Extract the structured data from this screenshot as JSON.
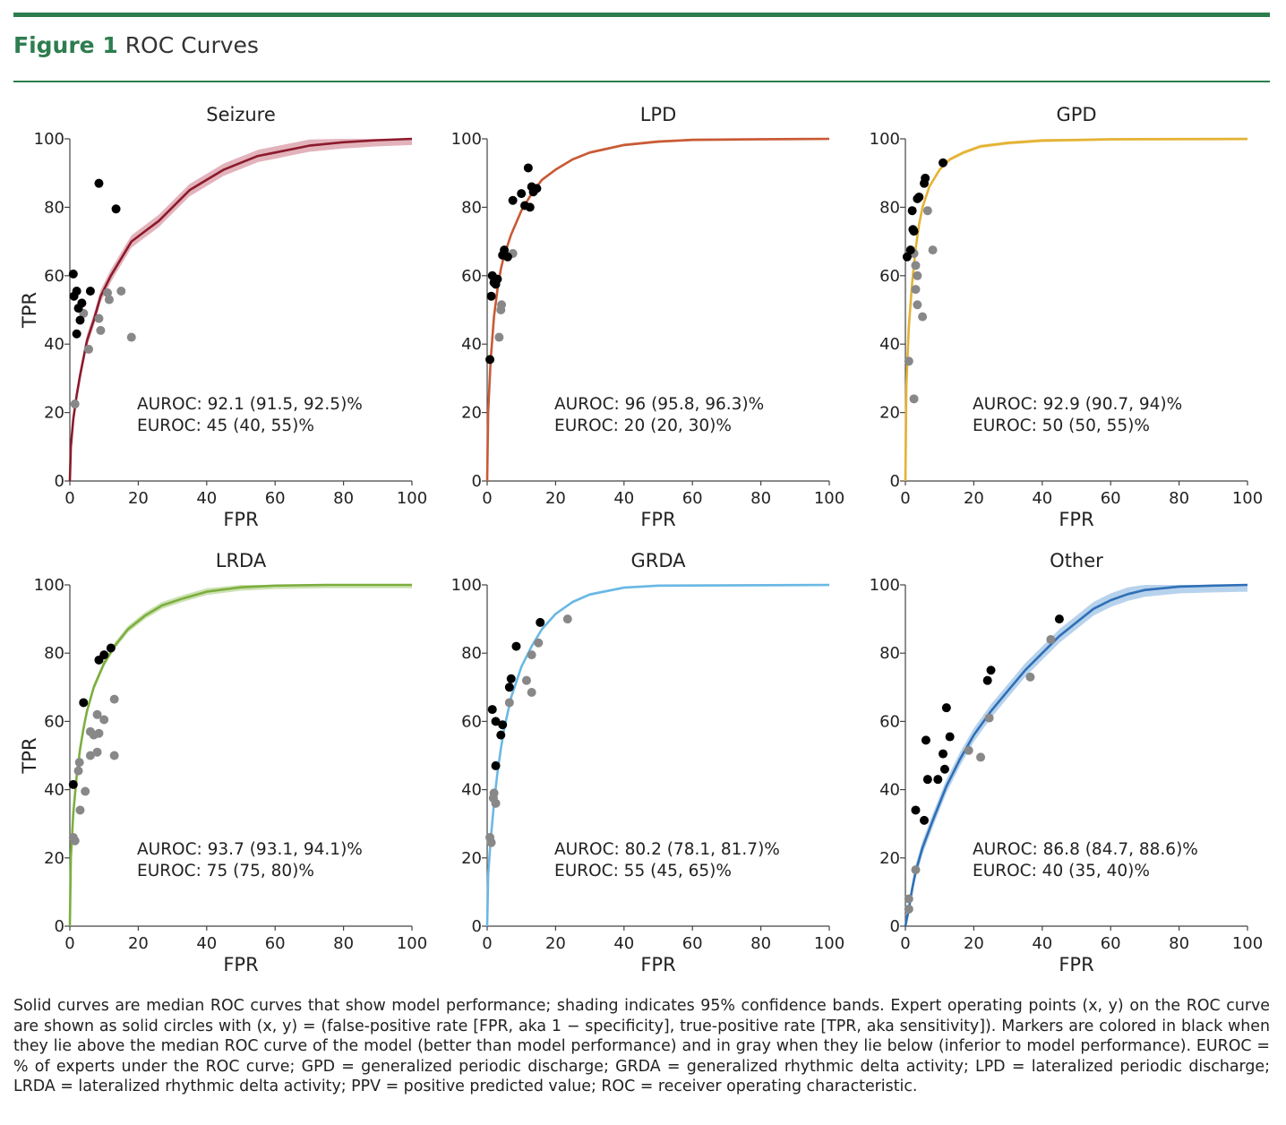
{
  "figure": {
    "label": "Figure 1",
    "name": "ROC Curves"
  },
  "colors": {
    "accent": "#2e7d4f",
    "black_marker": "#000000",
    "gray_marker": "#888888"
  },
  "axis_labels": {
    "x": "FPR",
    "y": "TPR"
  },
  "caption": "Solid curves are median ROC curves that show model performance; shading indicates 95% confidence bands. Expert operating points (x, y) on the ROC curve are shown as solid circles with (x, y) = (false-positive rate [FPR, aka 1 − specificity], true-positive rate [TPR, aka sensitivity]). Markers are colored in black when they lie above the median ROC curve of the model (better than model performance) and in gray when they lie below (inferior to model performance). EUROC = % of experts under the ROC curve; GPD = generalized periodic discharge; GRDA = generalized rhythmic delta activity; LPD = lateralized periodic discharge; LRDA = lateralized rhythmic delta activity; PPV = positive predicted value; ROC = receiver operating characteristic.",
  "chart_data": [
    {
      "type": "line",
      "title": "Seizure",
      "xlabel": "FPR",
      "ylabel": "TPR",
      "xlim": [
        0,
        100
      ],
      "ylim": [
        0,
        100
      ],
      "xticks": [
        "0",
        "20",
        "40",
        "60",
        "80",
        "100"
      ],
      "yticks": [
        "0",
        "20",
        "40",
        "60",
        "80",
        "100"
      ],
      "color": "#8b1a2b",
      "band_color": "#d99aa6",
      "curve": [
        [
          0,
          0
        ],
        [
          0.3,
          10
        ],
        [
          1,
          18
        ],
        [
          2,
          25
        ],
        [
          3,
          31
        ],
        [
          4,
          36
        ],
        [
          5,
          41
        ],
        [
          7,
          47
        ],
        [
          9,
          54
        ],
        [
          12,
          60
        ],
        [
          15,
          65
        ],
        [
          18,
          70
        ],
        [
          22,
          73
        ],
        [
          26,
          76
        ],
        [
          30,
          80
        ],
        [
          35,
          85
        ],
        [
          40,
          88
        ],
        [
          45,
          91
        ],
        [
          50,
          93
        ],
        [
          55,
          95
        ],
        [
          60,
          96
        ],
        [
          65,
          97
        ],
        [
          70,
          98
        ],
        [
          80,
          99
        ],
        [
          90,
          99.6
        ],
        [
          100,
          100
        ]
      ],
      "band_width": 1.8,
      "auroc_text": "AUROC: 92.1 (91.5, 92.5)%",
      "euroc_text": "EUROC: 45 (40, 55)%",
      "black_points": [
        [
          1,
          60.5
        ],
        [
          1.2,
          54
        ],
        [
          2,
          55.5
        ],
        [
          2,
          43
        ],
        [
          2.5,
          50.5
        ],
        [
          3,
          47
        ],
        [
          3.5,
          52
        ],
        [
          6,
          55.5
        ],
        [
          8.5,
          87
        ],
        [
          13.5,
          79.5
        ]
      ],
      "gray_points": [
        [
          1.5,
          22.5
        ],
        [
          4,
          49
        ],
        [
          5.5,
          38.5
        ],
        [
          8.5,
          47.5
        ],
        [
          9,
          44
        ],
        [
          11,
          55
        ],
        [
          11.5,
          53
        ],
        [
          15,
          55.5
        ],
        [
          18,
          42
        ]
      ]
    },
    {
      "type": "line",
      "title": "LPD",
      "xlabel": "FPR",
      "ylabel": "TPR",
      "xlim": [
        0,
        100
      ],
      "ylim": [
        0,
        100
      ],
      "xticks": [
        "0",
        "20",
        "40",
        "60",
        "80",
        "100"
      ],
      "yticks": [
        "0",
        "20",
        "40",
        "60",
        "80",
        "100"
      ],
      "color": "#c85a35",
      "band_color": "#e7a78c",
      "curve": [
        [
          0,
          0
        ],
        [
          0.3,
          20
        ],
        [
          1,
          35
        ],
        [
          2,
          48
        ],
        [
          3,
          56
        ],
        [
          4,
          62
        ],
        [
          5,
          66
        ],
        [
          7,
          72
        ],
        [
          10,
          79
        ],
        [
          13,
          84
        ],
        [
          16,
          88
        ],
        [
          20,
          91
        ],
        [
          25,
          94
        ],
        [
          30,
          96
        ],
        [
          40,
          98.2
        ],
        [
          50,
          99.2
        ],
        [
          60,
          99.7
        ],
        [
          80,
          99.9
        ],
        [
          100,
          100
        ]
      ],
      "band_width": 0.4,
      "auroc_text": "AUROC: 96 (95.8, 96.3)%",
      "euroc_text": "EUROC: 20 (20, 30)%",
      "black_points": [
        [
          0.8,
          35.5
        ],
        [
          1.2,
          54
        ],
        [
          1.5,
          60
        ],
        [
          2,
          58
        ],
        [
          3,
          59
        ],
        [
          2.5,
          57.5
        ],
        [
          4.5,
          66
        ],
        [
          5,
          67.5
        ],
        [
          6,
          65.5
        ],
        [
          7.5,
          82
        ],
        [
          10,
          84
        ],
        [
          11,
          80.5
        ],
        [
          12,
          91.5
        ],
        [
          13,
          86
        ],
        [
          13.5,
          84.5
        ],
        [
          12.5,
          80
        ],
        [
          14.5,
          85.5
        ]
      ],
      "gray_points": [
        [
          3.5,
          42
        ],
        [
          4,
          50
        ],
        [
          4.2,
          51.5
        ],
        [
          7.5,
          66.5
        ]
      ]
    },
    {
      "type": "line",
      "title": "GPD",
      "xlabel": "FPR",
      "ylabel": "TPR",
      "xlim": [
        0,
        100
      ],
      "ylim": [
        0,
        100
      ],
      "xticks": [
        "0",
        "20",
        "40",
        "60",
        "80",
        "100"
      ],
      "yticks": [
        "0",
        "20",
        "40",
        "60",
        "80",
        "100"
      ],
      "color": "#e4b234",
      "band_color": "#f0d488",
      "curve": [
        [
          0,
          0
        ],
        [
          0.3,
          28
        ],
        [
          1,
          45
        ],
        [
          2,
          58
        ],
        [
          3,
          68
        ],
        [
          4,
          75
        ],
        [
          5,
          80
        ],
        [
          7,
          86
        ],
        [
          10,
          91
        ],
        [
          13,
          94
        ],
        [
          17,
          96
        ],
        [
          22,
          97.8
        ],
        [
          30,
          98.8
        ],
        [
          40,
          99.5
        ],
        [
          60,
          99.9
        ],
        [
          100,
          100
        ]
      ],
      "band_width": 0.5,
      "auroc_text": "AUROC: 92.9 (90.7, 94)%",
      "euroc_text": "EUROC: 50 (50, 55)%",
      "black_points": [
        [
          0.5,
          65.5
        ],
        [
          1.5,
          67.5
        ],
        [
          2,
          79
        ],
        [
          2.2,
          73.5
        ],
        [
          2.5,
          73
        ],
        [
          3.5,
          82.5
        ],
        [
          4,
          83
        ],
        [
          5.5,
          87
        ],
        [
          5.8,
          88.5
        ],
        [
          11,
          93
        ]
      ],
      "gray_points": [
        [
          1,
          35
        ],
        [
          2.5,
          24
        ],
        [
          2.5,
          66.5
        ],
        [
          3,
          63
        ],
        [
          3,
          56
        ],
        [
          3.5,
          60
        ],
        [
          3.5,
          51.5
        ],
        [
          5,
          48
        ],
        [
          6.5,
          79
        ],
        [
          8,
          67.5
        ]
      ]
    },
    {
      "type": "line",
      "title": "LRDA",
      "xlabel": "FPR",
      "ylabel": "TPR",
      "xlim": [
        0,
        100
      ],
      "ylim": [
        0,
        100
      ],
      "xticks": [
        "0",
        "20",
        "40",
        "60",
        "80",
        "100"
      ],
      "yticks": [
        "0",
        "20",
        "40",
        "60",
        "80",
        "100"
      ],
      "color": "#7cae3e",
      "band_color": "#bcd89a",
      "curve": [
        [
          0,
          0
        ],
        [
          0.3,
          20
        ],
        [
          1,
          33
        ],
        [
          2,
          44
        ],
        [
          3,
          52
        ],
        [
          4,
          58
        ],
        [
          5,
          63
        ],
        [
          7,
          70
        ],
        [
          10,
          77
        ],
        [
          13,
          82
        ],
        [
          17,
          87
        ],
        [
          22,
          91
        ],
        [
          27,
          94
        ],
        [
          33,
          96
        ],
        [
          40,
          98
        ],
        [
          50,
          99.3
        ],
        [
          60,
          99.8
        ],
        [
          75,
          100
        ],
        [
          100,
          100
        ]
      ],
      "band_width": 1.0,
      "auroc_text": "AUROC: 93.7 (93.1, 94.1)%",
      "euroc_text": "EUROC: 75 (75, 80)%",
      "black_points": [
        [
          1,
          41.5
        ],
        [
          4,
          65.5
        ],
        [
          8.5,
          78
        ],
        [
          10,
          79.5
        ],
        [
          12,
          81.5
        ]
      ],
      "gray_points": [
        [
          1,
          26
        ],
        [
          1.5,
          25
        ],
        [
          2.5,
          45.5
        ],
        [
          2.8,
          48
        ],
        [
          3,
          34
        ],
        [
          4.5,
          39.5
        ],
        [
          6,
          50
        ],
        [
          6,
          57
        ],
        [
          7,
          56
        ],
        [
          8,
          51
        ],
        [
          8,
          62
        ],
        [
          8.5,
          56.5
        ],
        [
          10,
          60.5
        ],
        [
          13,
          50
        ],
        [
          13,
          66.5
        ]
      ]
    },
    {
      "type": "line",
      "title": "GRDA",
      "xlabel": "FPR",
      "ylabel": "TPR",
      "xlim": [
        0,
        100
      ],
      "ylim": [
        0,
        100
      ],
      "xticks": [
        "0",
        "20",
        "40",
        "60",
        "80",
        "100"
      ],
      "yticks": [
        "0",
        "20",
        "40",
        "60",
        "80",
        "100"
      ],
      "color": "#6ab8e4",
      "band_color": "#b6dcf2",
      "curve": [
        [
          0,
          0
        ],
        [
          0.3,
          15
        ],
        [
          1,
          25
        ],
        [
          2,
          36
        ],
        [
          3,
          45
        ],
        [
          4,
          52
        ],
        [
          5,
          58
        ],
        [
          7,
          67
        ],
        [
          10,
          76
        ],
        [
          13,
          82
        ],
        [
          16,
          87
        ],
        [
          20,
          91.5
        ],
        [
          25,
          95
        ],
        [
          30,
          97.2
        ],
        [
          40,
          99.2
        ],
        [
          50,
          99.8
        ],
        [
          100,
          100
        ]
      ],
      "band_width": 0.4,
      "auroc_text": "AUROC: 80.2 (78.1, 81.7)%",
      "euroc_text": "EUROC: 55 (45, 65)%",
      "black_points": [
        [
          1.5,
          63.5
        ],
        [
          2.5,
          60
        ],
        [
          2.5,
          47
        ],
        [
          4,
          56
        ],
        [
          4.5,
          59
        ],
        [
          6.5,
          70
        ],
        [
          7,
          72.5
        ],
        [
          8.5,
          82
        ],
        [
          15.5,
          89
        ]
      ],
      "gray_points": [
        [
          0.8,
          26
        ],
        [
          1.2,
          24.5
        ],
        [
          1.8,
          37.5
        ],
        [
          2,
          39
        ],
        [
          2.5,
          36
        ],
        [
          6.5,
          65.5
        ],
        [
          11.5,
          72
        ],
        [
          13,
          68.5
        ],
        [
          13,
          79.5
        ],
        [
          15,
          83
        ],
        [
          23.5,
          90
        ]
      ]
    },
    {
      "type": "line",
      "title": "Other",
      "xlabel": "FPR",
      "ylabel": "TPR",
      "xlim": [
        0,
        100
      ],
      "ylim": [
        0,
        100
      ],
      "xticks": [
        "0",
        "20",
        "40",
        "60",
        "80",
        "100"
      ],
      "yticks": [
        "0",
        "20",
        "40",
        "60",
        "80",
        "100"
      ],
      "color": "#2f6fb6",
      "band_color": "#9fc3e6",
      "curve": [
        [
          0,
          0
        ],
        [
          1,
          5
        ],
        [
          2,
          11
        ],
        [
          3,
          16
        ],
        [
          5,
          23
        ],
        [
          8,
          31
        ],
        [
          12,
          41
        ],
        [
          16,
          49
        ],
        [
          20,
          56
        ],
        [
          25,
          63
        ],
        [
          30,
          69
        ],
        [
          35,
          75
        ],
        [
          40,
          80
        ],
        [
          45,
          85
        ],
        [
          50,
          89
        ],
        [
          55,
          93
        ],
        [
          60,
          95.5
        ],
        [
          65,
          97.3
        ],
        [
          70,
          98.5
        ],
        [
          80,
          99.5
        ],
        [
          90,
          99.8
        ],
        [
          100,
          100
        ]
      ],
      "band_width": 2.0,
      "auroc_text": "AUROC: 86.8 (84.7, 88.6)%",
      "euroc_text": "EUROC: 40 (35, 40)%",
      "black_points": [
        [
          3,
          34
        ],
        [
          5.5,
          31
        ],
        [
          6,
          54.5
        ],
        [
          6.5,
          43
        ],
        [
          9.5,
          43
        ],
        [
          11,
          50.5
        ],
        [
          11.5,
          46
        ],
        [
          12,
          64
        ],
        [
          13,
          55.5
        ],
        [
          24,
          72
        ],
        [
          25,
          75
        ],
        [
          45,
          90
        ]
      ],
      "gray_points": [
        [
          1,
          8
        ],
        [
          1,
          5
        ],
        [
          3,
          16.5
        ],
        [
          18.5,
          51.5
        ],
        [
          22,
          49.5
        ],
        [
          24.5,
          61
        ],
        [
          36.5,
          73
        ],
        [
          42.5,
          84
        ]
      ]
    }
  ]
}
